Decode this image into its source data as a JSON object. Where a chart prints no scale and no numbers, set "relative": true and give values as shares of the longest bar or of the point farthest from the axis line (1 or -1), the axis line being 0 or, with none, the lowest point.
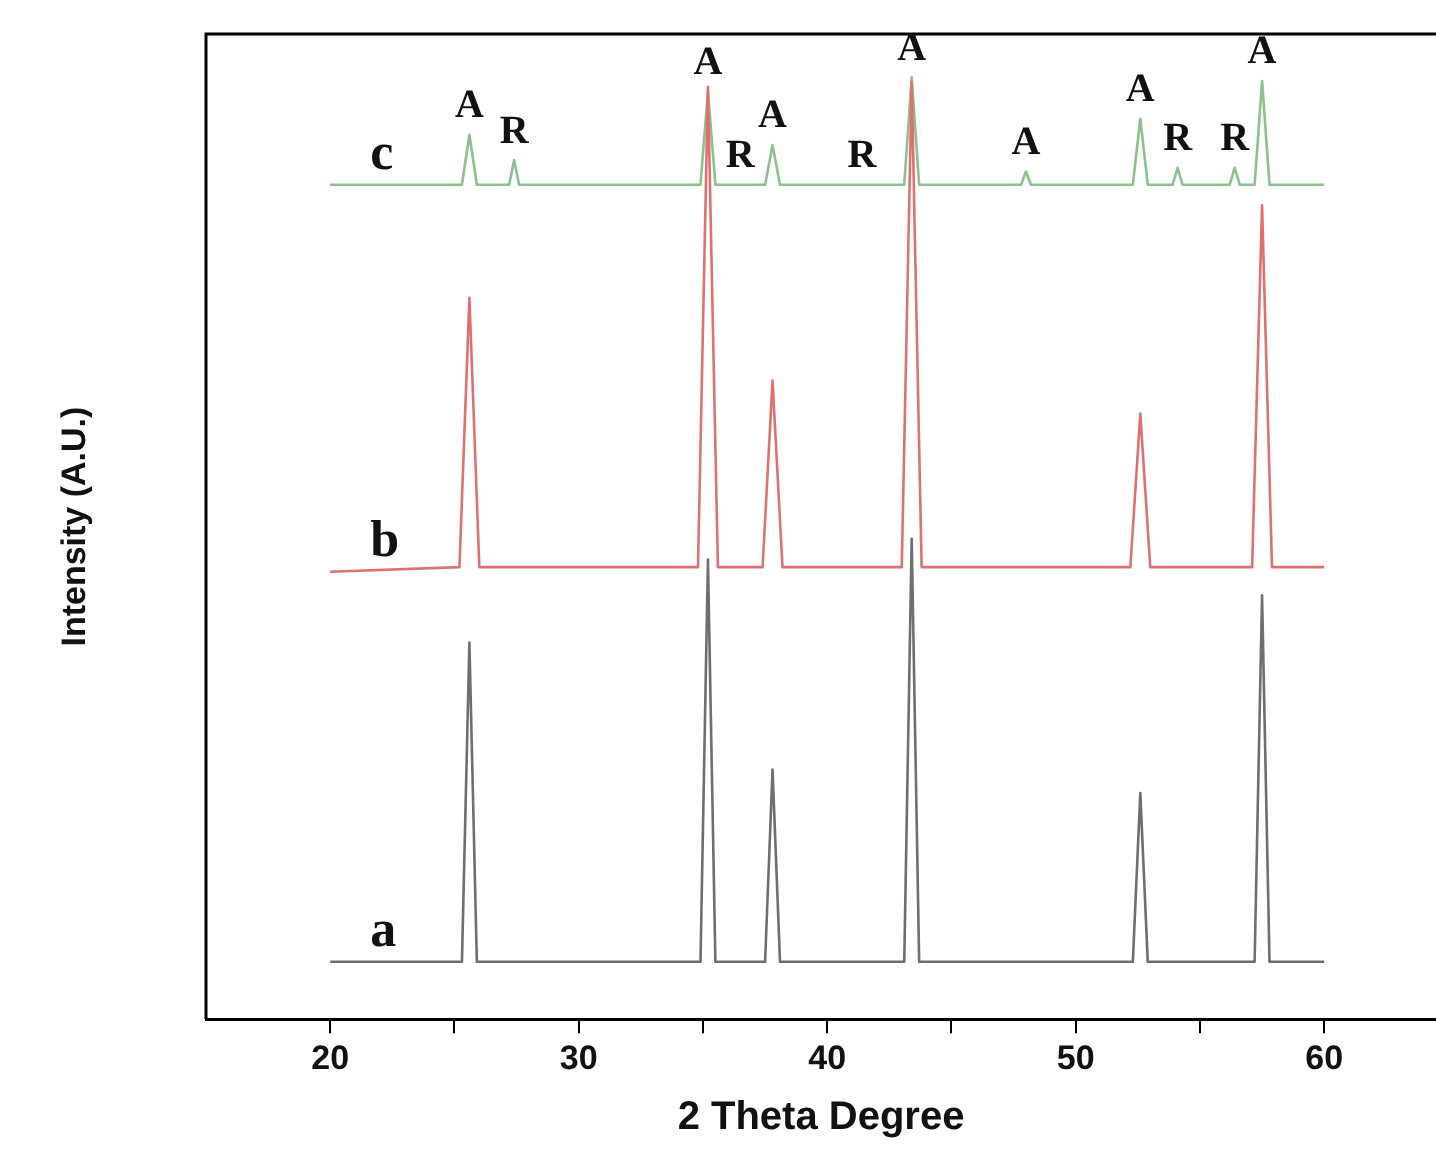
{
  "chart_data": {
    "type": "line",
    "relative": true,
    "xlabel": "2 Theta Degree",
    "ylabel": "Intensity (A.U.)",
    "xlim": [
      15,
      64.5
    ],
    "xticks": [
      20,
      {
        "value": 25,
        "label": null
      },
      30,
      {
        "value": 35,
        "label": null
      },
      40,
      {
        "value": 45,
        "label": null
      },
      50,
      {
        "value": 55,
        "label": null
      },
      60
    ],
    "grid": false,
    "legend": false,
    "marker": "none",
    "line_style": "solid",
    "tick_labels": "x",
    "series": [
      {
        "name": "a",
        "color": "#6e6e6e",
        "x": [
          20,
          25.3,
          25.6,
          25.9,
          34.9,
          35.2,
          35.5,
          37.5,
          37.8,
          38.1,
          43.1,
          43.4,
          43.7,
          52.3,
          52.6,
          52.9,
          57.2,
          57.5,
          57.8,
          60
        ],
        "values": [
          0.061,
          0.061,
          0.4,
          0.061,
          0.061,
          0.488,
          0.061,
          0.061,
          0.265,
          0.061,
          0.061,
          0.51,
          0.061,
          0.061,
          0.24,
          0.061,
          0.061,
          0.45,
          0.061,
          0.061
        ]
      },
      {
        "name": "b",
        "color": "#e07070",
        "x": [
          20,
          25.2,
          25.6,
          26.0,
          34.8,
          35.2,
          35.6,
          37.4,
          37.8,
          38.2,
          43.0,
          43.4,
          43.8,
          52.2,
          52.6,
          53.0,
          57.1,
          57.5,
          57.9,
          60
        ],
        "values": [
          0.475,
          0.48,
          0.766,
          0.48,
          0.48,
          0.99,
          0.48,
          0.48,
          0.678,
          0.48,
          0.48,
          0.995,
          0.48,
          0.48,
          0.643,
          0.48,
          0.48,
          0.864,
          0.48,
          0.48
        ]
      },
      {
        "name": "c",
        "color": "#8cc08c",
        "x": [
          20,
          25.3,
          25.6,
          25.9,
          27.2,
          27.4,
          27.6,
          34.9,
          35.2,
          35.5,
          37.5,
          37.8,
          38.1,
          43.1,
          43.4,
          43.7,
          47.8,
          48.0,
          48.2,
          52.3,
          52.6,
          52.9,
          53.9,
          54.1,
          54.3,
          56.2,
          56.4,
          56.6,
          57.2,
          57.5,
          57.8,
          60
        ],
        "values": [
          0.886,
          0.886,
          0.939,
          0.886,
          0.886,
          0.912,
          0.886,
          0.886,
          0.985,
          0.886,
          0.886,
          0.928,
          0.886,
          0.886,
          1.0,
          0.886,
          0.886,
          0.9,
          0.886,
          0.886,
          0.956,
          0.886,
          0.886,
          0.904,
          0.886,
          0.886,
          0.904,
          0.886,
          0.886,
          0.996,
          0.886,
          0.886
        ]
      }
    ],
    "annotations": [
      {
        "text": "A",
        "x": 25.6,
        "y": 0.939
      },
      {
        "text": "R",
        "x": 27.4,
        "y": 0.912
      },
      {
        "text": "A",
        "x": 35.2,
        "y": 0.985
      },
      {
        "text": "R",
        "x": 36.5,
        "y": 0.886
      },
      {
        "text": "A",
        "x": 37.8,
        "y": 0.928
      },
      {
        "text": "R",
        "x": 41.4,
        "y": 0.886
      },
      {
        "text": "A",
        "x": 43.4,
        "y": 1.0
      },
      {
        "text": "A",
        "x": 48.0,
        "y": 0.9
      },
      {
        "text": "A",
        "x": 52.6,
        "y": 0.956
      },
      {
        "text": "R",
        "x": 54.1,
        "y": 0.904
      },
      {
        "text": "R",
        "x": 56.4,
        "y": 0.904
      },
      {
        "text": "A",
        "x": 57.5,
        "y": 0.996
      }
    ]
  }
}
